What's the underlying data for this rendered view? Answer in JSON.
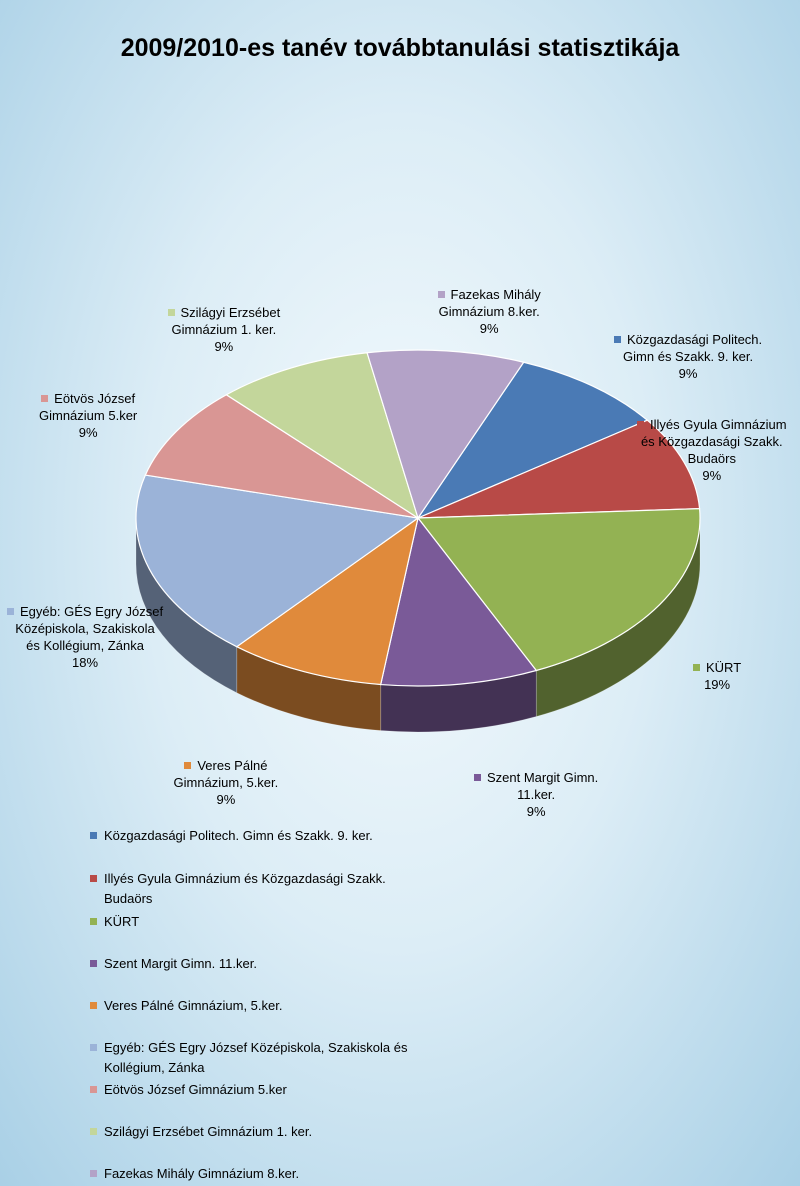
{
  "chart_data": {
    "type": "pie",
    "title": "2009/2010-es tanév továbbtanulási statisztikája",
    "slices": [
      {
        "label": "Közgazdasági Politech. Gimn és Szakk. 9. ker.",
        "pct_label": "9%",
        "value": 9,
        "color": "#4a7ab5"
      },
      {
        "label": "Illyés Gyula Gimnázium és Közgazdasági Szakk. Budaörs",
        "pct_label": "9%",
        "value": 9,
        "color": "#b84a47"
      },
      {
        "label": "KÜRT",
        "pct_label": "19%",
        "value": 19,
        "color": "#93b253"
      },
      {
        "label": "Szent Margit Gimn. 11.ker.",
        "pct_label": "9%",
        "value": 9,
        "color": "#7a5a98"
      },
      {
        "label": "Veres Pálné Gimnázium, 5.ker.",
        "pct_label": "9%",
        "value": 9,
        "color": "#e08a3b"
      },
      {
        "label": "Egyéb: GÉS Egry József Középiskola, Szakiskola és Kollégium, Zánka",
        "pct_label": "18%",
        "value": 18,
        "color": "#9bb3d8"
      },
      {
        "label": "Eötvös József Gimnázium 5.ker",
        "pct_label": "9%",
        "value": 9,
        "color": "#d99694"
      },
      {
        "label": "Szilágyi Erzsébet Gimnázium 1. ker.",
        "pct_label": "9%",
        "value": 9,
        "color": "#c3d69b"
      },
      {
        "label": "Fazekas Mihály Gimnázium 8.ker.",
        "pct_label": "9%",
        "value": 9,
        "color": "#b3a2c7"
      }
    ],
    "data_labels": [
      [
        "Közgazdasági Politech.",
        "Gimn és Szakk. 9. ker.",
        "9%"
      ],
      [
        "Illyés Gyula Gimnázium",
        "és Közgazdasági Szakk.",
        "Budaörs",
        "9%"
      ],
      [
        "KÜRT",
        "19%"
      ],
      [
        "Szent Margit Gimn.",
        "11.ker.",
        "9%"
      ],
      [
        "Veres Pálné",
        "Gimnázium, 5.ker.",
        "9%"
      ],
      [
        "Egyéb: GÉS Egry József",
        "Középiskola, Szakiskola",
        "és Kollégium, Zánka",
        "18%"
      ],
      [
        "Eötvös József",
        "Gimnázium 5.ker",
        "9%"
      ],
      [
        "Szilágyi Erzsébet",
        "Gimnázium 1. ker.",
        "9%"
      ],
      [
        "Fazekas Mihály",
        "Gimnázium 8.ker.",
        "9%"
      ]
    ],
    "legend": [
      [
        "Közgazdasági Politech. Gimn és Szakk. 9. ker."
      ],
      [
        "Illyés Gyula Gimnázium és Közgazdasági Szakk. Budaörs"
      ],
      [
        "KÜRT"
      ],
      [
        "Szent Margit Gimn. 11.ker."
      ],
      [
        "Veres Pálné Gimnázium, 5.ker."
      ],
      [
        "Egyéb: GÉS Egry József Középiskola, Szakiskola és",
        "Kollégium, Zánka"
      ],
      [
        "Eötvös József Gimnázium 5.ker"
      ],
      [
        "Szilágyi Erzsébet Gimnázium 1. ker."
      ],
      [
        "Fazekas Mihály Gimnázium 8.ker."
      ]
    ],
    "legend_position": "bottom"
  }
}
